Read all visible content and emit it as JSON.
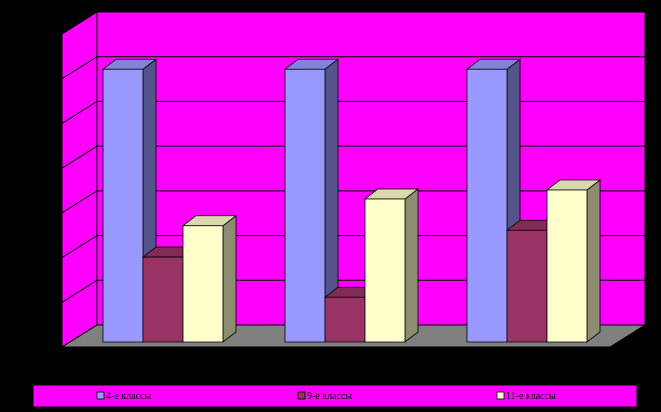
{
  "chart_data": {
    "type": "bar3d",
    "categories": [
      null,
      null,
      null
    ],
    "series": [
      {
        "name": "4-е классы",
        "color": "#9999ff",
        "values": [
          6.1,
          6.1,
          6.1
        ]
      },
      {
        "name": "9-е классы",
        "color": "#993366",
        "values": [
          1.9,
          1.0,
          2.5
        ]
      },
      {
        "name": "11-е классы",
        "color": "#ffffcc",
        "values": [
          2.6,
          3.2,
          3.4
        ]
      }
    ],
    "ylim": [
      0,
      7
    ],
    "yticks": [
      0,
      1,
      2,
      3,
      4,
      5,
      6,
      7
    ],
    "grid": true,
    "wall_color": "#ff00ff",
    "floor_color": "#808080",
    "legend": "bottom"
  }
}
